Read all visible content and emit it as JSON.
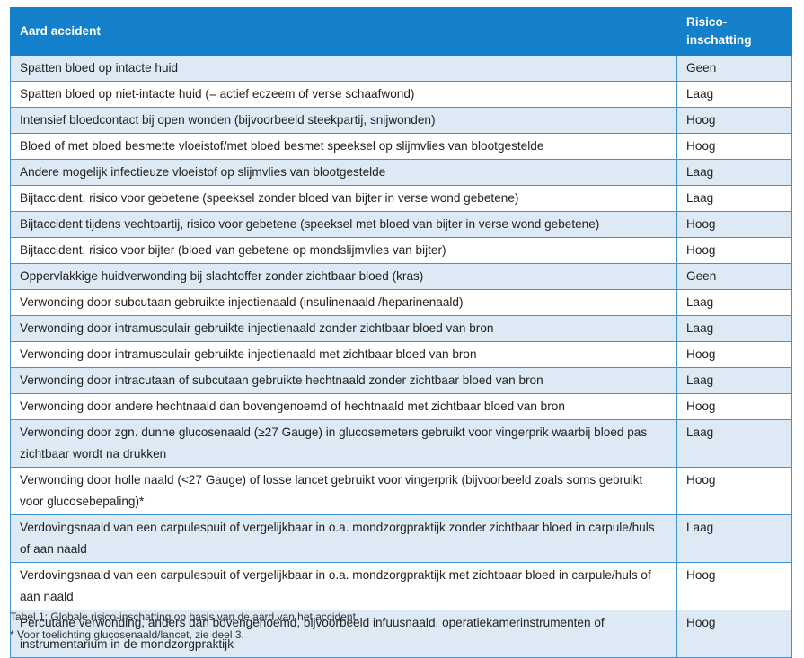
{
  "table": {
    "headers": [
      "Aard accident",
      "Risico-inschatting"
    ],
    "rows": [
      [
        "Spatten bloed op intacte huid",
        "Geen"
      ],
      [
        "Spatten bloed op niet-intacte huid (= actief eczeem of verse schaafwond)",
        "Laag"
      ],
      [
        "Intensief bloedcontact bij open wonden (bijvoorbeeld steekpartij, snijwonden)",
        "Hoog"
      ],
      [
        "Bloed of met bloed besmette vloeistof/met bloed besmet speeksel op slijmvlies van blootgestelde",
        "Hoog"
      ],
      [
        "Andere mogelijk infectieuze vloeistof op slijmvlies van blootgestelde",
        "Laag"
      ],
      [
        "Bijtaccident, risico voor gebetene (speeksel zonder bloed van bijter in verse wond gebetene)",
        "Laag"
      ],
      [
        "Bijtaccident tijdens vechtpartij, risico voor gebetene (speeksel met bloed van bijter in verse wond gebetene)",
        "Hoog"
      ],
      [
        "Bijtaccident, risico voor bijter (bloed van gebetene op mondslijmvlies van bijter)",
        "Hoog"
      ],
      [
        "Oppervlakkige huidverwonding bij slachtoffer zonder zichtbaar bloed (kras)",
        "Geen"
      ],
      [
        "Verwonding door subcutaan gebruikte injectienaald (insulinenaald /heparinenaald)",
        "Laag"
      ],
      [
        "Verwonding door intramusculair gebruikte injectienaald zonder zichtbaar bloed van bron",
        "Laag"
      ],
      [
        "Verwonding door intramusculair gebruikte injectienaald met zichtbaar bloed van bron",
        "Hoog"
      ],
      [
        "Verwonding door intracutaan of subcutaan gebruikte hechtnaald zonder zichtbaar bloed van bron",
        "Laag"
      ],
      [
        "Verwonding door andere hechtnaald dan bovengenoemd of hechtnaald met zichtbaar bloed van bron",
        "Hoog"
      ],
      [
        "Verwonding door zgn. dunne glucosenaald (≥27 Gauge) in glucosemeters gebruikt voor vingerprik waarbij bloed pas zichtbaar wordt na drukken",
        "Laag"
      ],
      [
        "Verwonding door holle naald (<27 Gauge) of losse lancet gebruikt voor vingerprik (bijvoorbeeld zoals soms gebruikt voor glucosebepaling)*",
        "Hoog"
      ],
      [
        "Verdovingsnaald van een carpulespuit of vergelijkbaar in o.a. mondzorgpraktijk zonder zichtbaar bloed in carpule/huls of aan naald",
        "Laag"
      ],
      [
        "Verdovingsnaald van een carpulespuit of vergelijkbaar in o.a. mondzorgpraktijk met zichtbaar bloed in carpule/huls of aan naald",
        "Hoog"
      ],
      [
        "Percutane verwonding, anders dan bovengenoemd, bijvoorbeeld infuusnaald, operatiekamerinstrumenten of instrumentarium in de mondzorgpraktijk",
        "Hoog"
      ]
    ]
  },
  "caption": "Tabel 1: Globale risico-inschatting op basis van de aard van het accident.",
  "footnote": "* Voor toelichting glucosenaald/lancet, zie deel 3."
}
